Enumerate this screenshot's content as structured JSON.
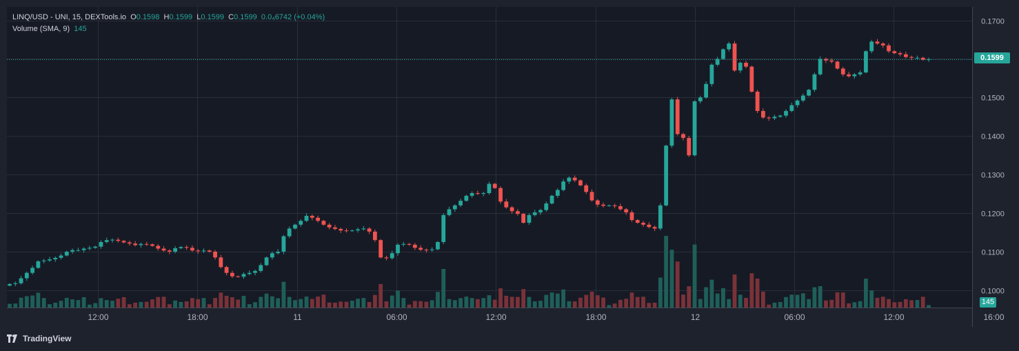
{
  "legend": {
    "symbol": "LINQ/USD - UNI, 15, DEXTools.io",
    "o_label": "O",
    "o_value": "0.1598",
    "h_label": "H",
    "h_value": "0.1599",
    "l_label": "L",
    "l_value": "0.1599",
    "c_label": "C",
    "c_value": "0.1599",
    "change": "0.0₄6742 (+0.04%)",
    "volume_label": "Volume (SMA, 9)",
    "volume_value": "145"
  },
  "last_price_label": "0.1599",
  "last_volume_label": "145",
  "brand": "TradingView",
  "colors": {
    "up": "#26a69a",
    "down": "#ef5350",
    "up_volume": "#1f5f59",
    "down_volume": "#7a3239",
    "background": "#1e222d",
    "grid": "#2a2e39"
  },
  "chart_data": {
    "type": "candlestick",
    "interval": "15",
    "ylim": [
      0.0955,
      0.1735
    ],
    "yticks": [
      "0.1700",
      "0.1600",
      "0.1500",
      "0.1400",
      "0.1300",
      "0.1200",
      "0.1100",
      "0.1000"
    ],
    "xticks": [
      "12:00",
      "18:00",
      "11",
      "06:00",
      "12:00",
      "18:00",
      "12",
      "06:00",
      "12:00",
      "16:00"
    ],
    "last_price": 0.1599,
    "series": [
      {
        "name": "Price",
        "close_path": [
          0.1016,
          0.1018,
          0.1031,
          0.1045,
          0.1058,
          0.1075,
          0.1077,
          0.108,
          0.1084,
          0.109,
          0.11,
          0.1104,
          0.1104,
          0.1108,
          0.111,
          0.1113,
          0.1125,
          0.113,
          0.1131,
          0.1128,
          0.1124,
          0.1121,
          0.1117,
          0.112,
          0.1119,
          0.1115,
          0.1108,
          0.1103,
          0.11,
          0.1109,
          0.1112,
          0.111,
          0.1103,
          0.1101,
          0.1103,
          0.11,
          0.1085,
          0.106,
          0.1045,
          0.1036,
          0.1035,
          0.1042,
          0.1045,
          0.105,
          0.1065,
          0.1085,
          0.1096,
          0.11,
          0.114,
          0.116,
          0.117,
          0.118,
          0.1193,
          0.1188,
          0.118,
          0.117,
          0.1163,
          0.1159,
          0.1155,
          0.1154,
          0.1155,
          0.1158,
          0.116,
          0.1152,
          0.113,
          0.1085,
          0.1083,
          0.1096,
          0.1118,
          0.112,
          0.1118,
          0.111,
          0.1105,
          0.1104,
          0.1106,
          0.1125,
          0.1195,
          0.121,
          0.122,
          0.1232,
          0.1245,
          0.1252,
          0.125,
          0.1252,
          0.1276,
          0.1265,
          0.123,
          0.1215,
          0.1205,
          0.1198,
          0.1175,
          0.1195,
          0.1202,
          0.1208,
          0.1225,
          0.1245,
          0.126,
          0.1282,
          0.1292,
          0.1285,
          0.1272,
          0.1255,
          0.1233,
          0.1222,
          0.1219,
          0.122,
          0.1218,
          0.121,
          0.1202,
          0.1182,
          0.1175,
          0.117,
          0.1164,
          0.116,
          0.122,
          0.1375,
          0.1495,
          0.1405,
          0.1395,
          0.135,
          0.149,
          0.15,
          0.1535,
          0.1585,
          0.16,
          0.1625,
          0.164,
          0.157,
          0.159,
          0.158,
          0.1515,
          0.1465,
          0.1448,
          0.1446,
          0.145,
          0.1453,
          0.1465,
          0.148,
          0.1492,
          0.1505,
          0.152,
          0.156,
          0.16,
          0.1596,
          0.1593,
          0.1575,
          0.156,
          0.1555,
          0.156,
          0.1565,
          0.162,
          0.1645,
          0.164,
          0.1635,
          0.162,
          0.1615,
          0.1612,
          0.1605,
          0.1603,
          0.1603,
          0.1598,
          0.1599
        ]
      },
      {
        "name": "Volume (SMA, 9)",
        "last": 145
      }
    ]
  }
}
